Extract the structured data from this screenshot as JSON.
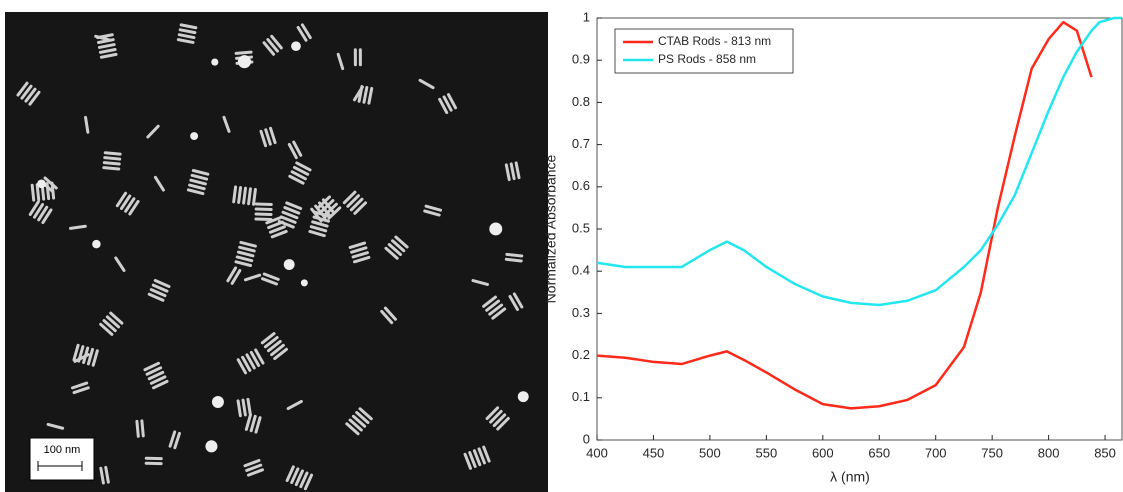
{
  "image": {
    "scale_bar": "100 nm"
  },
  "chart_data": {
    "type": "line",
    "x_label": "λ (nm)",
    "y_label": "Normalized Absorbance",
    "x": [
      400,
      425,
      450,
      475,
      500,
      515,
      530,
      550,
      575,
      600,
      625,
      650,
      675,
      700,
      725,
      740,
      755,
      770,
      785,
      800,
      813,
      825,
      838,
      845,
      858,
      865
    ],
    "series": [
      {
        "name": "CTAB Rods - 813 nm",
        "color": "#ff2a1a",
        "values": [
          0.2,
          0.195,
          0.185,
          0.18,
          0.2,
          0.21,
          0.19,
          0.16,
          0.12,
          0.085,
          0.075,
          0.08,
          0.095,
          0.13,
          0.22,
          0.35,
          0.55,
          0.72,
          0.88,
          0.95,
          0.99,
          0.97,
          0.86,
          null,
          null,
          null
        ]
      },
      {
        "name": "PS Rods - 858 nm",
        "color": "#22e6f0",
        "values": [
          0.42,
          0.41,
          0.41,
          0.41,
          0.45,
          0.47,
          0.45,
          0.41,
          0.37,
          0.34,
          0.325,
          0.32,
          0.33,
          0.355,
          0.41,
          0.45,
          0.51,
          0.58,
          0.68,
          0.78,
          0.86,
          0.92,
          0.97,
          0.99,
          1.0,
          1.0
        ]
      }
    ],
    "xlim": [
      400,
      865
    ],
    "xticks": [
      400,
      450,
      500,
      550,
      600,
      650,
      700,
      750,
      800,
      850
    ],
    "ylim": [
      0,
      1
    ],
    "yticks": [
      0,
      0.1,
      0.2,
      0.3,
      0.4,
      0.5,
      0.6,
      0.7,
      0.8,
      0.9,
      1
    ],
    "grid": false,
    "legend": "upper left"
  }
}
